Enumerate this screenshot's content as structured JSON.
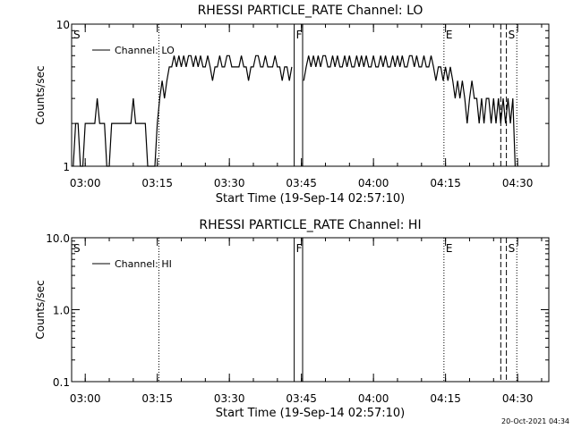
{
  "timestamp": "20-Oct-2021 04:34",
  "chart_data": [
    {
      "type": "line",
      "title": "RHESSI PARTICLE_RATE Channel: LO",
      "xlabel": "Start Time (19-Sep-14 02:57:10)",
      "ylabel": "Counts/sec",
      "yscale": "log",
      "ylim": [
        1,
        10
      ],
      "y_ticks": [
        "1",
        "10"
      ],
      "xlim": [
        "02:57:10",
        "04:36:30"
      ],
      "x_ticks": [
        "03:00",
        "03:15",
        "03:30",
        "03:45",
        "04:00",
        "04:15",
        "04:30"
      ],
      "legend": {
        "position": "top-left",
        "entries": [
          "Channel: LO"
        ]
      },
      "markers": [
        {
          "label": "S",
          "time": "02:57:10",
          "style": "dotted"
        },
        {
          "label": "",
          "time": "03:15:20",
          "style": "dotted"
        },
        {
          "label": "F",
          "time": "03:43:30",
          "style": "solid"
        },
        {
          "label": "",
          "time": "03:45:15",
          "style": "solid"
        },
        {
          "label": "E",
          "time": "04:14:40",
          "style": "dotted"
        },
        {
          "label": "",
          "time": "04:26:30",
          "style": "dashed"
        },
        {
          "label": "S",
          "time": "04:27:40",
          "style": "dashed"
        },
        {
          "label": "",
          "time": "04:29:50",
          "style": "dotted"
        }
      ],
      "series": [
        {
          "name": "Channel: LO",
          "segments": [
            {
              "x": [
                "02:57:30",
                "02:58:00",
                "02:58:30",
                "02:59:00",
                "02:59:30",
                "03:00:00",
                "03:00:30",
                "03:01:00",
                "03:01:30",
                "03:02:00",
                "03:02:30",
                "03:03:00",
                "03:03:30",
                "03:04:00",
                "03:04:30",
                "03:05:00",
                "03:05:30",
                "03:06:00",
                "03:06:30",
                "03:07:00",
                "03:07:30",
                "03:08:00",
                "03:08:30",
                "03:09:00",
                "03:09:30",
                "03:10:00",
                "03:10:30",
                "03:11:00",
                "03:11:30",
                "03:12:00",
                "03:12:30",
                "03:13:00",
                "03:13:30",
                "03:14:00",
                "03:14:30",
                "03:15:00",
                "03:15:30",
                "03:16:00",
                "03:16:30",
                "03:17:00",
                "03:17:30",
                "03:18:00",
                "03:18:30",
                "03:19:00",
                "03:19:30",
                "03:20:00",
                "03:20:30",
                "03:21:00",
                "03:21:30",
                "03:22:00",
                "03:22:30",
                "03:23:00",
                "03:23:30",
                "03:24:00",
                "03:24:30",
                "03:25:00",
                "03:25:30",
                "03:26:00",
                "03:26:30",
                "03:27:00",
                "03:27:30",
                "03:28:00",
                "03:28:30",
                "03:29:00",
                "03:29:30",
                "03:30:00",
                "03:30:30",
                "03:31:00",
                "03:31:30",
                "03:32:00",
                "03:32:30",
                "03:33:00",
                "03:33:30",
                "03:34:00",
                "03:34:30",
                "03:35:00",
                "03:35:30",
                "03:36:00",
                "03:36:30",
                "03:37:00",
                "03:37:30",
                "03:38:00",
                "03:38:30",
                "03:39:00",
                "03:39:30",
                "03:40:00",
                "03:40:30",
                "03:41:00",
                "03:41:30",
                "03:42:00",
                "03:42:30",
                "03:43:00"
              ],
              "y": [
                1,
                2,
                2,
                1,
                1,
                2,
                2,
                2,
                2,
                2,
                3,
                2,
                2,
                2,
                1,
                1,
                2,
                2,
                2,
                2,
                2,
                2,
                2,
                2,
                2,
                3,
                2,
                2,
                2,
                2,
                2,
                1,
                1,
                1,
                1,
                2,
                3,
                4,
                3,
                4,
                5,
                5,
                6,
                5,
                6,
                5,
                6,
                5,
                6,
                6,
                5,
                6,
                5,
                6,
                5,
                5,
                6,
                5,
                4,
                5,
                5,
                6,
                5,
                5,
                6,
                6,
                5,
                5,
                5,
                5,
                6,
                5,
                5,
                4,
                5,
                5,
                6,
                6,
                5,
                5,
                6,
                5,
                5,
                5,
                6,
                5,
                5,
                4,
                5,
                5,
                4,
                5
              ]
            },
            {
              "x": [
                "03:45:30",
                "03:46:00",
                "03:46:30",
                "03:47:00",
                "03:47:30",
                "03:48:00",
                "03:48:30",
                "03:49:00",
                "03:49:30",
                "03:50:00",
                "03:50:30",
                "03:51:00",
                "03:51:30",
                "03:52:00",
                "03:52:30",
                "03:53:00",
                "03:53:30",
                "03:54:00",
                "03:54:30",
                "03:55:00",
                "03:55:30",
                "03:56:00",
                "03:56:30",
                "03:57:00",
                "03:57:30",
                "03:58:00",
                "03:58:30",
                "03:59:00",
                "03:59:30",
                "04:00:00",
                "04:00:30",
                "04:01:00",
                "04:01:30",
                "04:02:00",
                "04:02:30",
                "04:03:00",
                "04:03:30",
                "04:04:00",
                "04:04:30",
                "04:05:00",
                "04:05:30",
                "04:06:00",
                "04:06:30",
                "04:07:00",
                "04:07:30",
                "04:08:00",
                "04:08:30",
                "04:09:00",
                "04:09:30",
                "04:10:00",
                "04:10:30",
                "04:11:00",
                "04:11:30",
                "04:12:00",
                "04:12:30",
                "04:13:00",
                "04:13:30",
                "04:14:00",
                "04:14:30",
                "04:15:00",
                "04:15:30",
                "04:16:00",
                "04:16:30",
                "04:17:00",
                "04:17:30",
                "04:18:00",
                "04:18:30",
                "04:19:00",
                "04:19:30",
                "04:20:00",
                "04:20:30",
                "04:21:00",
                "04:21:30",
                "04:22:00",
                "04:22:30",
                "04:23:00",
                "04:23:30",
                "04:24:00",
                "04:24:30",
                "04:25:00",
                "04:25:30",
                "04:26:00",
                "04:26:30",
                "04:27:00",
                "04:27:30",
                "04:28:00",
                "04:28:30",
                "04:29:00",
                "04:29:30"
              ],
              "y": [
                4,
                5,
                6,
                5,
                6,
                5,
                6,
                5,
                6,
                6,
                5,
                5,
                6,
                5,
                6,
                5,
                5,
                6,
                5,
                6,
                5,
                5,
                6,
                5,
                6,
                5,
                6,
                5,
                5,
                6,
                5,
                5,
                6,
                5,
                6,
                5,
                5,
                6,
                5,
                6,
                5,
                6,
                5,
                5,
                6,
                6,
                5,
                6,
                5,
                5,
                6,
                5,
                5,
                6,
                5,
                4,
                5,
                5,
                4,
                5,
                4,
                5,
                4,
                3,
                4,
                3,
                4,
                3,
                2,
                3,
                4,
                3,
                3,
                2,
                3,
                2,
                3,
                3,
                2,
                3,
                2,
                3,
                2,
                3,
                2,
                3,
                2,
                3,
                1
              ]
            }
          ]
        }
      ]
    },
    {
      "type": "line",
      "title": "RHESSI PARTICLE_RATE Channel: HI",
      "xlabel": "Start Time (19-Sep-14 02:57:10)",
      "ylabel": "Counts/sec",
      "yscale": "log",
      "ylim": [
        0.1,
        10
      ],
      "y_ticks": [
        "0.1",
        "1.0",
        "10.0"
      ],
      "xlim": [
        "02:57:10",
        "04:36:30"
      ],
      "x_ticks": [
        "03:00",
        "03:15",
        "03:30",
        "03:45",
        "04:00",
        "04:15",
        "04:30"
      ],
      "legend": {
        "position": "top-left",
        "entries": [
          "Channel: HI"
        ]
      },
      "markers": [
        {
          "label": "S",
          "time": "02:57:10",
          "style": "dotted"
        },
        {
          "label": "",
          "time": "03:15:20",
          "style": "dotted"
        },
        {
          "label": "F",
          "time": "03:43:30",
          "style": "solid"
        },
        {
          "label": "",
          "time": "03:45:15",
          "style": "solid"
        },
        {
          "label": "E",
          "time": "04:14:40",
          "style": "dotted"
        },
        {
          "label": "",
          "time": "04:26:30",
          "style": "dashed"
        },
        {
          "label": "S",
          "time": "04:27:40",
          "style": "dashed"
        },
        {
          "label": "",
          "time": "04:29:50",
          "style": "dotted"
        }
      ],
      "series": [
        {
          "name": "Channel: HI",
          "segments": []
        }
      ]
    }
  ]
}
